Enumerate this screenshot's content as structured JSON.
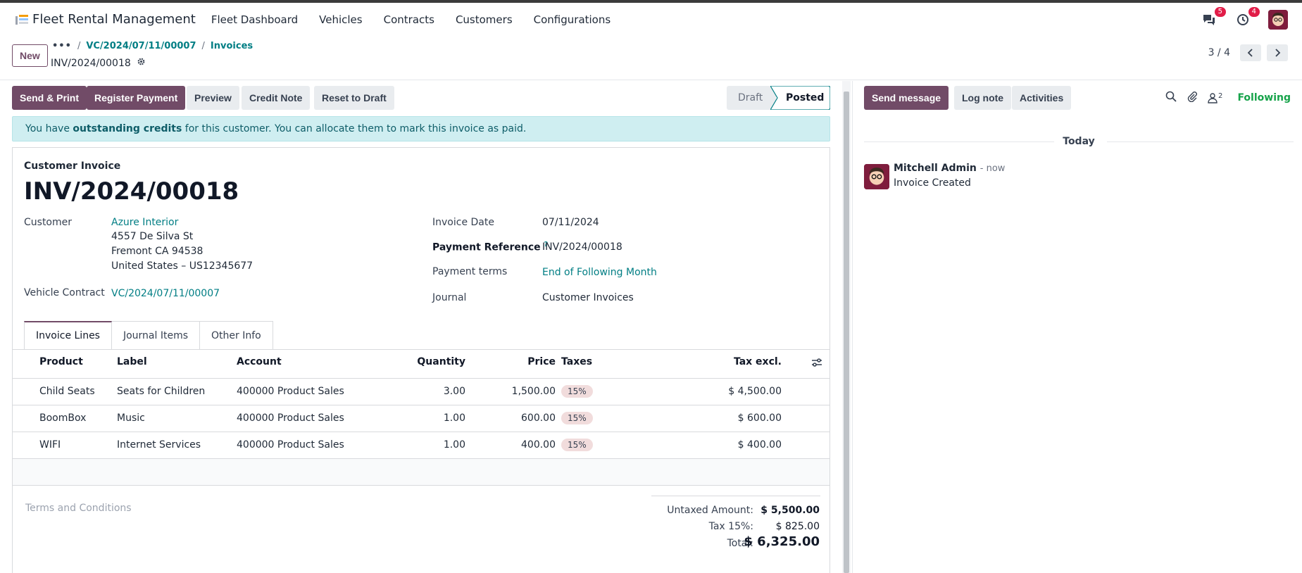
{
  "navbar": {
    "app_name": "Fleet Rental Management",
    "menu": [
      "Fleet Dashboard",
      "Vehicles",
      "Contracts",
      "Customers",
      "Configurations"
    ],
    "messages_count": "5",
    "activities_count": "4"
  },
  "control": {
    "new_label": "New",
    "breadcrumb_dots": "•••",
    "breadcrumb": [
      "VC/2024/07/11/00007",
      "Invoices"
    ],
    "record_name": "INV/2024/00018",
    "pager": "3 / 4"
  },
  "status_bar": {
    "buttons": [
      "Send & Print",
      "Register Payment",
      "Preview",
      "Credit Note",
      "Reset to Draft"
    ],
    "stages": [
      "Draft",
      "Posted"
    ],
    "current_stage": "Posted"
  },
  "alert": {
    "pre": "You have ",
    "bold": "outstanding credits",
    "post": " for this customer. You can allocate them to mark this invoice as paid."
  },
  "invoice": {
    "type": "Customer Invoice",
    "number": "INV/2024/00018",
    "customer_label": "Customer",
    "customer_name": "Azure Interior",
    "address": [
      "4557 De Silva St",
      "Fremont CA 94538",
      "United States – US12345677"
    ],
    "contract_label": "Vehicle Contract",
    "contract": "VC/2024/07/11/00007",
    "invoice_date_label": "Invoice Date",
    "invoice_date": "07/11/2024",
    "payment_ref_label": "Payment Reference",
    "payment_ref_help": "?",
    "payment_ref": "INV/2024/00018",
    "payment_terms_label": "Payment terms",
    "payment_terms": "End of Following Month",
    "journal_label": "Journal",
    "journal": "Customer Invoices"
  },
  "tabs": [
    "Invoice Lines",
    "Journal Items",
    "Other Info"
  ],
  "lines": {
    "headers": [
      "Product",
      "Label",
      "Account",
      "Quantity",
      "Price",
      "Taxes",
      "Tax excl."
    ],
    "rows": [
      {
        "product": "Child Seats",
        "label": "Seats for Children",
        "account": "400000 Product Sales",
        "quantity": "3.00",
        "price": "1,500.00",
        "tax": "15%",
        "subtotal": "$ 4,500.00"
      },
      {
        "product": "BoomBox",
        "label": "Music",
        "account": "400000 Product Sales",
        "quantity": "1.00",
        "price": "600.00",
        "tax": "15%",
        "subtotal": "$ 600.00"
      },
      {
        "product": "WIFI",
        "label": "Internet Services",
        "account": "400000 Product Sales",
        "quantity": "1.00",
        "price": "400.00",
        "tax": "15%",
        "subtotal": "$ 400.00"
      }
    ]
  },
  "terms_placeholder": "Terms and Conditions",
  "totals": {
    "untaxed_label": "Untaxed Amount:",
    "untaxed": "$ 5,500.00",
    "tax_label": "Tax 15%:",
    "tax": "$ 825.00",
    "total_label": "Total:",
    "total": "$ 6,325.00"
  },
  "chatter": {
    "send_message": "Send message",
    "log_note": "Log note",
    "activities": "Activities",
    "followers_count": "2",
    "following": "Following",
    "today": "Today",
    "author": "Mitchell Admin",
    "time": "- now",
    "body": "Invoice Created"
  },
  "colors": {
    "primary": "#714b67",
    "link": "#017e84",
    "alert_bg": "#cfeef1",
    "following": "#16a34a"
  }
}
